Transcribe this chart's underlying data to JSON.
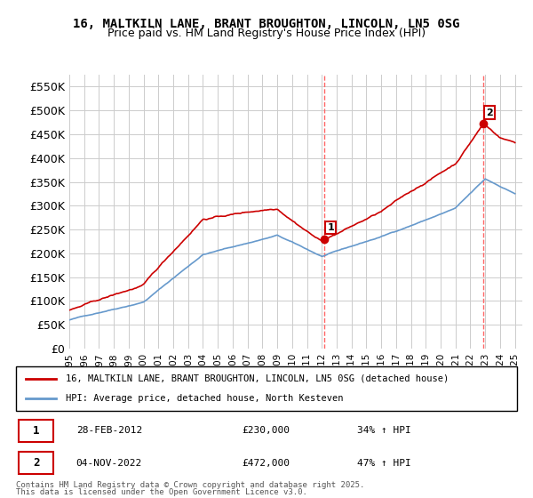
{
  "title_line1": "16, MALTKILN LANE, BRANT BROUGHTON, LINCOLN, LN5 0SG",
  "title_line2": "Price paid vs. HM Land Registry's House Price Index (HPI)",
  "ylabel": "",
  "ylim": [
    0,
    575000
  ],
  "yticks": [
    0,
    50000,
    100000,
    150000,
    200000,
    250000,
    300000,
    350000,
    400000,
    450000,
    500000,
    550000
  ],
  "ytick_labels": [
    "£0",
    "£50K",
    "£100K",
    "£150K",
    "£200K",
    "£250K",
    "£300K",
    "£350K",
    "£400K",
    "£450K",
    "£500K",
    "£550K"
  ],
  "x_start_year": 1995,
  "x_end_year": 2025,
  "marker1_date": "2012-02-28",
  "marker1_label": "1",
  "marker1_value": 230000,
  "marker1_pct": "34% ↑ HPI",
  "marker2_date": "2022-11-04",
  "marker2_label": "2",
  "marker2_value": 472000,
  "marker2_pct": "47% ↑ HPI",
  "legend_line1": "16, MALTKILN LANE, BRANT BROUGHTON, LINCOLN, LN5 0SG (detached house)",
  "legend_line2": "HPI: Average price, detached house, North Kesteven",
  "red_color": "#cc0000",
  "blue_color": "#6699cc",
  "dashed_red": "#ff6666",
  "footer_line1": "Contains HM Land Registry data © Crown copyright and database right 2025.",
  "footer_line2": "This data is licensed under the Open Government Licence v3.0.",
  "table_row1": "28-FEB-2012    £230,000    34% ↑ HPI",
  "table_row2": "04-NOV-2022    £472,000    47% ↑ HPI",
  "background_color": "#ffffff",
  "grid_color": "#cccccc"
}
